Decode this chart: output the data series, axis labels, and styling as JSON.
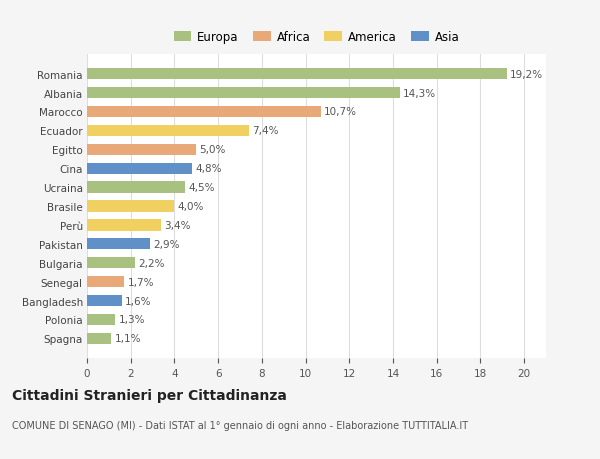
{
  "categories": [
    "Romania",
    "Albania",
    "Marocco",
    "Ecuador",
    "Egitto",
    "Cina",
    "Ucraina",
    "Brasile",
    "Perù",
    "Pakistan",
    "Bulgaria",
    "Senegal",
    "Bangladesh",
    "Polonia",
    "Spagna"
  ],
  "values": [
    19.2,
    14.3,
    10.7,
    7.4,
    5.0,
    4.8,
    4.5,
    4.0,
    3.4,
    2.9,
    2.2,
    1.7,
    1.6,
    1.3,
    1.1
  ],
  "continents": [
    "Europa",
    "Europa",
    "Africa",
    "America",
    "Africa",
    "Asia",
    "Europa",
    "America",
    "America",
    "Asia",
    "Europa",
    "Africa",
    "Asia",
    "Europa",
    "Europa"
  ],
  "colors": {
    "Europa": "#a8c080",
    "Africa": "#e8a878",
    "America": "#f0d060",
    "Asia": "#6090c8"
  },
  "legend_order": [
    "Europa",
    "Africa",
    "America",
    "Asia"
  ],
  "title": "Cittadini Stranieri per Cittadinanza",
  "subtitle": "COMUNE DI SENAGO (MI) - Dati ISTAT al 1° gennaio di ogni anno - Elaborazione TUTTITALIA.IT",
  "xlim": [
    0,
    21
  ],
  "xticks": [
    0,
    2,
    4,
    6,
    8,
    10,
    12,
    14,
    16,
    18,
    20
  ],
  "background_color": "#f5f5f5",
  "bar_background": "#ffffff",
  "grid_color": "#dddddd",
  "label_fontsize": 7.5,
  "title_fontsize": 10,
  "subtitle_fontsize": 7,
  "value_fontsize": 7.5,
  "legend_fontsize": 8.5
}
